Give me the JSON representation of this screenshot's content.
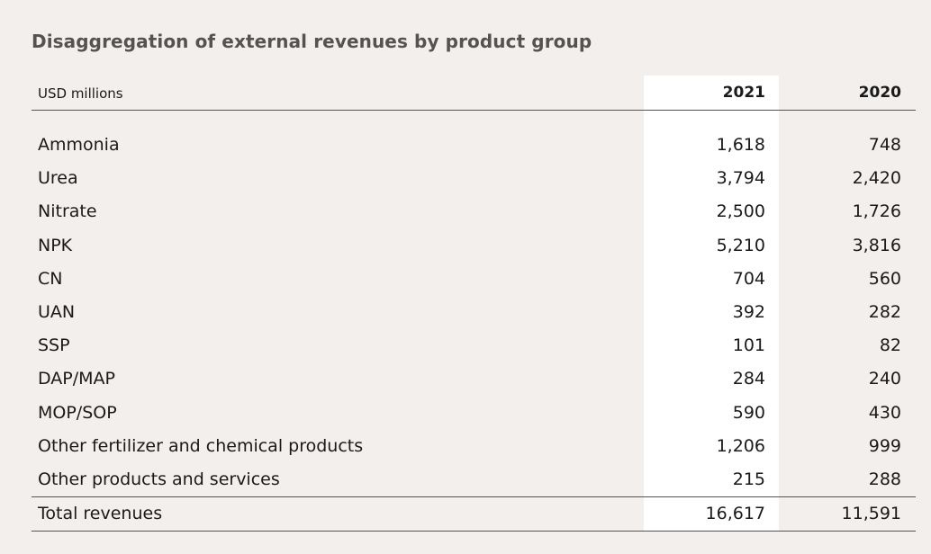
{
  "title": "Disaggregation of external revenues by product group",
  "header": {
    "unit_label": "USD millions",
    "years": [
      "2021",
      "2020"
    ]
  },
  "rows": [
    {
      "label": "Ammonia",
      "v2021": "1,618",
      "v2020": "748"
    },
    {
      "label": "Urea",
      "v2021": "3,794",
      "v2020": "2,420"
    },
    {
      "label": "Nitrate",
      "v2021": "2,500",
      "v2020": "1,726"
    },
    {
      "label": "NPK",
      "v2021": "5,210",
      "v2020": "3,816"
    },
    {
      "label": "CN",
      "v2021": "704",
      "v2020": "560"
    },
    {
      "label": "UAN",
      "v2021": "392",
      "v2020": "282"
    },
    {
      "label": "SSP",
      "v2021": "101",
      "v2020": "82"
    },
    {
      "label": "DAP/MAP",
      "v2021": "284",
      "v2020": "240"
    },
    {
      "label": "MOP/SOP",
      "v2021": "590",
      "v2020": "430"
    },
    {
      "label": "Other fertilizer and chemical products",
      "v2021": "1,206",
      "v2020": "999"
    },
    {
      "label": "Other products and services",
      "v2021": "215",
      "v2020": "288"
    }
  ],
  "total": {
    "label": "Total revenues",
    "v2021": "16,617",
    "v2020": "11,591"
  },
  "colors": {
    "background": "#f2efec",
    "highlight_column": "#ffffff",
    "title": "#555250",
    "rule": "#555250"
  }
}
